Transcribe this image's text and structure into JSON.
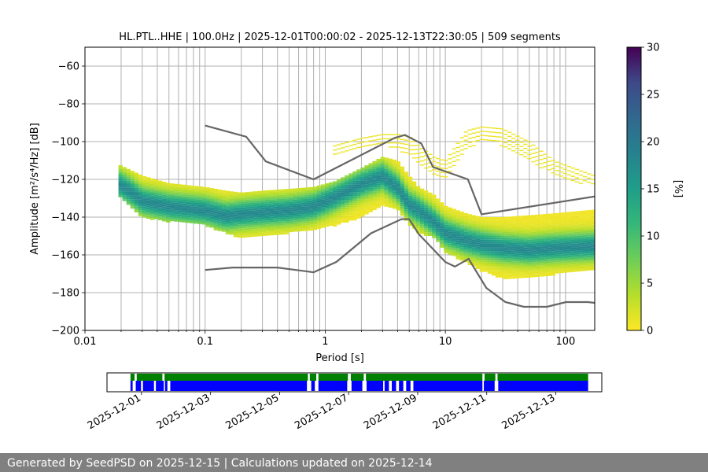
{
  "footer": {
    "text": "Generated by SeedPSD on 2025-12-15 | Calculations updated on 2025-12-14"
  },
  "chart_data": [
    {
      "type": "heatmap",
      "title": "HL.PTL..HHE | 100.0Hz | 2025-12-01T00:00:02 - 2025-12-13T22:30:05 | 509 segments",
      "xlabel": "Period [s]",
      "ylabel": "Amplitude [m²/s⁴/Hz] [dB]",
      "xscale": "log",
      "xlim": [
        0.01,
        175
      ],
      "ylim": [
        -200,
        -50
      ],
      "xticks": [
        "0.01",
        "0.1",
        "1",
        "10",
        "100"
      ],
      "yticks": [
        "−60",
        "−80",
        "−100",
        "−120",
        "−140",
        "−160",
        "−180",
        "−200"
      ],
      "grid": "on",
      "colorbar": {
        "label": "[%]",
        "range": [
          0,
          30
        ],
        "ticks": [
          "0",
          "5",
          "10",
          "15",
          "20",
          "25",
          "30"
        ],
        "colormap": "viridis"
      },
      "mode_curve": {
        "color": "#2a9a8a",
        "period": [
          0.019,
          0.025,
          0.03,
          0.05,
          0.1,
          0.15,
          0.2,
          0.3,
          0.5,
          0.8,
          1.2,
          2,
          3,
          4,
          5,
          6,
          8,
          10,
          15,
          20,
          30,
          50,
          80,
          175
        ],
        "db": [
          -122,
          -127,
          -131,
          -134,
          -136,
          -139,
          -138,
          -137,
          -136,
          -134,
          -129,
          -122,
          -118,
          -124,
          -133,
          -136,
          -142,
          -148,
          -152,
          -154,
          -156,
          -157,
          -156,
          -155
        ]
      },
      "density_band": {
        "period": [
          0.019,
          0.03,
          0.05,
          0.1,
          0.15,
          0.2,
          0.3,
          0.5,
          0.8,
          1.2,
          2,
          3,
          4,
          5,
          6,
          8,
          10,
          15,
          20,
          30,
          50,
          80,
          175
        ],
        "upper_db": [
          -112,
          -118,
          -122,
          -124,
          -126,
          -127,
          -126,
          -125,
          -124,
          -121,
          -114,
          -108,
          -110,
          -118,
          -124,
          -128,
          -134,
          -138,
          -140,
          -140,
          -139,
          -138,
          -136
        ],
        "lower_db": [
          -128,
          -140,
          -142,
          -144,
          -148,
          -151,
          -150,
          -148,
          -146,
          -144,
          -140,
          -134,
          -136,
          -144,
          -148,
          -150,
          -158,
          -164,
          -168,
          -172,
          -172,
          -170,
          -168
        ]
      },
      "outlier_band": {
        "period": [
          1.2,
          2,
          3,
          4,
          5,
          6,
          8,
          10,
          15,
          20,
          30,
          50,
          80,
          175
        ],
        "upper_db": [
          -102,
          -98,
          -96,
          -96,
          -97,
          -102,
          -108,
          -110,
          -94,
          -92,
          -93,
          -100,
          -110,
          -118
        ],
        "lower_db": [
          -108,
          -104,
          -102,
          -104,
          -108,
          -112,
          -118,
          -120,
          -104,
          -100,
          -102,
          -110,
          -118,
          -124
        ]
      },
      "noise_models": {
        "color": "#666666",
        "high": {
          "period": [
            0.1,
            0.22,
            0.32,
            0.8,
            3.8,
            4.6,
            6.3,
            7.9,
            15.4,
            20,
            354.8
          ],
          "db": [
            -91.5,
            -97.4,
            -110.5,
            -120,
            -98,
            -96.5,
            -101,
            -113.5,
            -120,
            -138.5,
            -126
          ]
        },
        "low": {
          "period": [
            0.1,
            0.17,
            0.4,
            0.8,
            1.24,
            2.4,
            4.3,
            5,
            6,
            10,
            12,
            15.6,
            21.9,
            31.6,
            45,
            70,
            101,
            154,
            328
          ],
          "db": [
            -168,
            -166.7,
            -166.7,
            -169.2,
            -163.7,
            -148.6,
            -141.1,
            -141.1,
            -149,
            -163.8,
            -166.2,
            -162.1,
            -177.5,
            -185,
            -187.5,
            -187.5,
            -185,
            -185,
            -187.5
          ]
        }
      }
    },
    {
      "type": "timeline",
      "xlim": [
        "2025-11-30T00:00",
        "2025-12-14T08:00"
      ],
      "xticks": [
        "2025-12-01",
        "2025-12-03",
        "2025-12-05",
        "2025-12-07",
        "2025-12-09",
        "2025-12-11",
        "2025-12-13"
      ],
      "series": [
        {
          "name": "",
          "color": "#008000",
          "intervals": [
            [
              "2025-11-30T16:20",
              "2025-11-30T19:10"
            ],
            [
              "2025-11-30T20:40",
              "2025-12-01T14:30"
            ],
            [
              "2025-12-01T16:00",
              "2025-12-05T19:40"
            ],
            [
              "2025-12-05T21:00",
              "2025-12-06T01:30"
            ],
            [
              "2025-12-06T03:00",
              "2025-12-06T23:30"
            ],
            [
              "2025-12-07T01:30",
              "2025-12-07T10:30"
            ],
            [
              "2025-12-07T12:00",
              "2025-12-10T21:00"
            ],
            [
              "2025-12-10T22:30",
              "2025-12-11T06:00"
            ],
            [
              "2025-12-11T07:30",
              "2025-12-13T22:30"
            ]
          ]
        },
        {
          "name": "",
          "color": "#0000ff",
          "intervals": [
            [
              "2025-11-30T16:20",
              "2025-11-30T17:50"
            ],
            [
              "2025-11-30T20:00",
              "2025-11-30T23:40"
            ],
            [
              "2025-12-01T01:00",
              "2025-12-01T08:40"
            ],
            [
              "2025-12-01T10:00",
              "2025-12-01T15:30"
            ],
            [
              "2025-12-01T16:20",
              "2025-12-01T18:00"
            ],
            [
              "2025-12-01T20:00",
              "2025-12-05T19:00"
            ],
            [
              "2025-12-05T22:00",
              "2025-12-06T00:30"
            ],
            [
              "2025-12-06T03:00",
              "2025-12-06T23:00"
            ],
            [
              "2025-12-07T02:00",
              "2025-12-07T09:30"
            ],
            [
              "2025-12-07T12:30",
              "2025-12-08T00:00"
            ],
            [
              "2025-12-08T01:00",
              "2025-12-08T04:00"
            ],
            [
              "2025-12-08T06:00",
              "2025-12-08T09:00"
            ],
            [
              "2025-12-08T11:00",
              "2025-12-08T14:00"
            ],
            [
              "2025-12-08T16:00",
              "2025-12-08T19:00"
            ],
            [
              "2025-12-08T21:00",
              "2025-12-10T21:00"
            ],
            [
              "2025-12-10T22:00",
              "2025-12-11T05:30"
            ],
            [
              "2025-12-11T08:00",
              "2025-12-13T22:30"
            ]
          ]
        }
      ]
    }
  ]
}
